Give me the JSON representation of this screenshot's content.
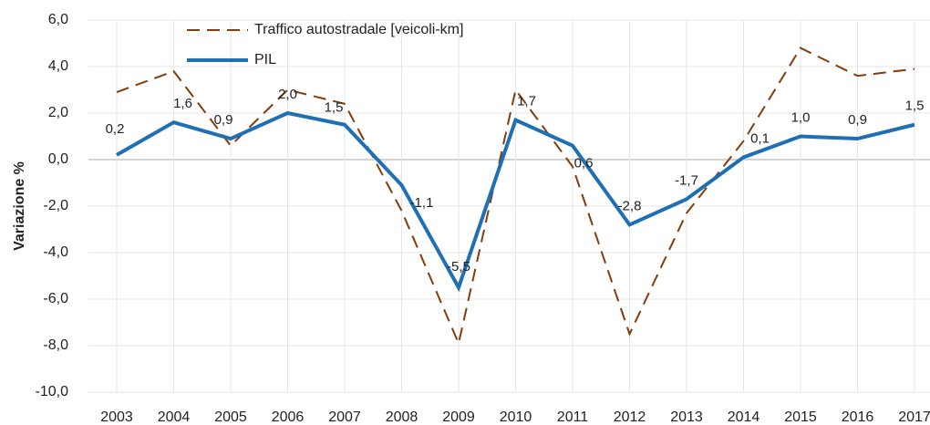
{
  "chart_data": {
    "type": "line",
    "y_label": "Variazione %",
    "categories": [
      "2003",
      "2004",
      "2005",
      "2006",
      "2007",
      "2008",
      "2009",
      "2010",
      "2011",
      "2012",
      "2013",
      "2014",
      "2015",
      "2016",
      "2017"
    ],
    "series": [
      {
        "name": "Traffico autostradale [veicoli-km]",
        "color": "#843c0c",
        "dash": true,
        "values": [
          2.9,
          3.8,
          0.6,
          3.0,
          2.4,
          -2.2,
          -7.9,
          3.0,
          -0.3,
          -7.5,
          -2.3,
          0.8,
          4.8,
          3.6,
          3.9
        ]
      },
      {
        "name": "PIL",
        "color": "#1f6fb5",
        "dash": false,
        "values": [
          0.2,
          1.6,
          0.9,
          2.0,
          1.5,
          -1.1,
          -5.5,
          1.7,
          0.6,
          -2.8,
          -1.7,
          0.1,
          1.0,
          0.9,
          1.5
        ],
        "value_labels": [
          "0,2",
          "1,6",
          "0,9",
          "2,0",
          "1,5",
          "-1,1",
          "-5,5",
          "1,7",
          "0,6",
          "-2,8",
          "-1,7",
          "0,1",
          "1,0",
          "0,9",
          "1,5"
        ]
      }
    ],
    "ylim": [
      -10,
      6
    ],
    "yticks": [
      {
        "value": -10,
        "label": "-10,0"
      },
      {
        "value": -8,
        "label": "-8,0"
      },
      {
        "value": -6,
        "label": "-6,0"
      },
      {
        "value": -4,
        "label": "-4,0"
      },
      {
        "value": -2,
        "label": "-2,0"
      },
      {
        "value": 0,
        "label": "0,0"
      },
      {
        "value": 2,
        "label": "2,0"
      },
      {
        "value": 4,
        "label": "4,0"
      },
      {
        "value": 6,
        "label": "6,0"
      }
    ],
    "grid": true,
    "legend": "top-left"
  }
}
